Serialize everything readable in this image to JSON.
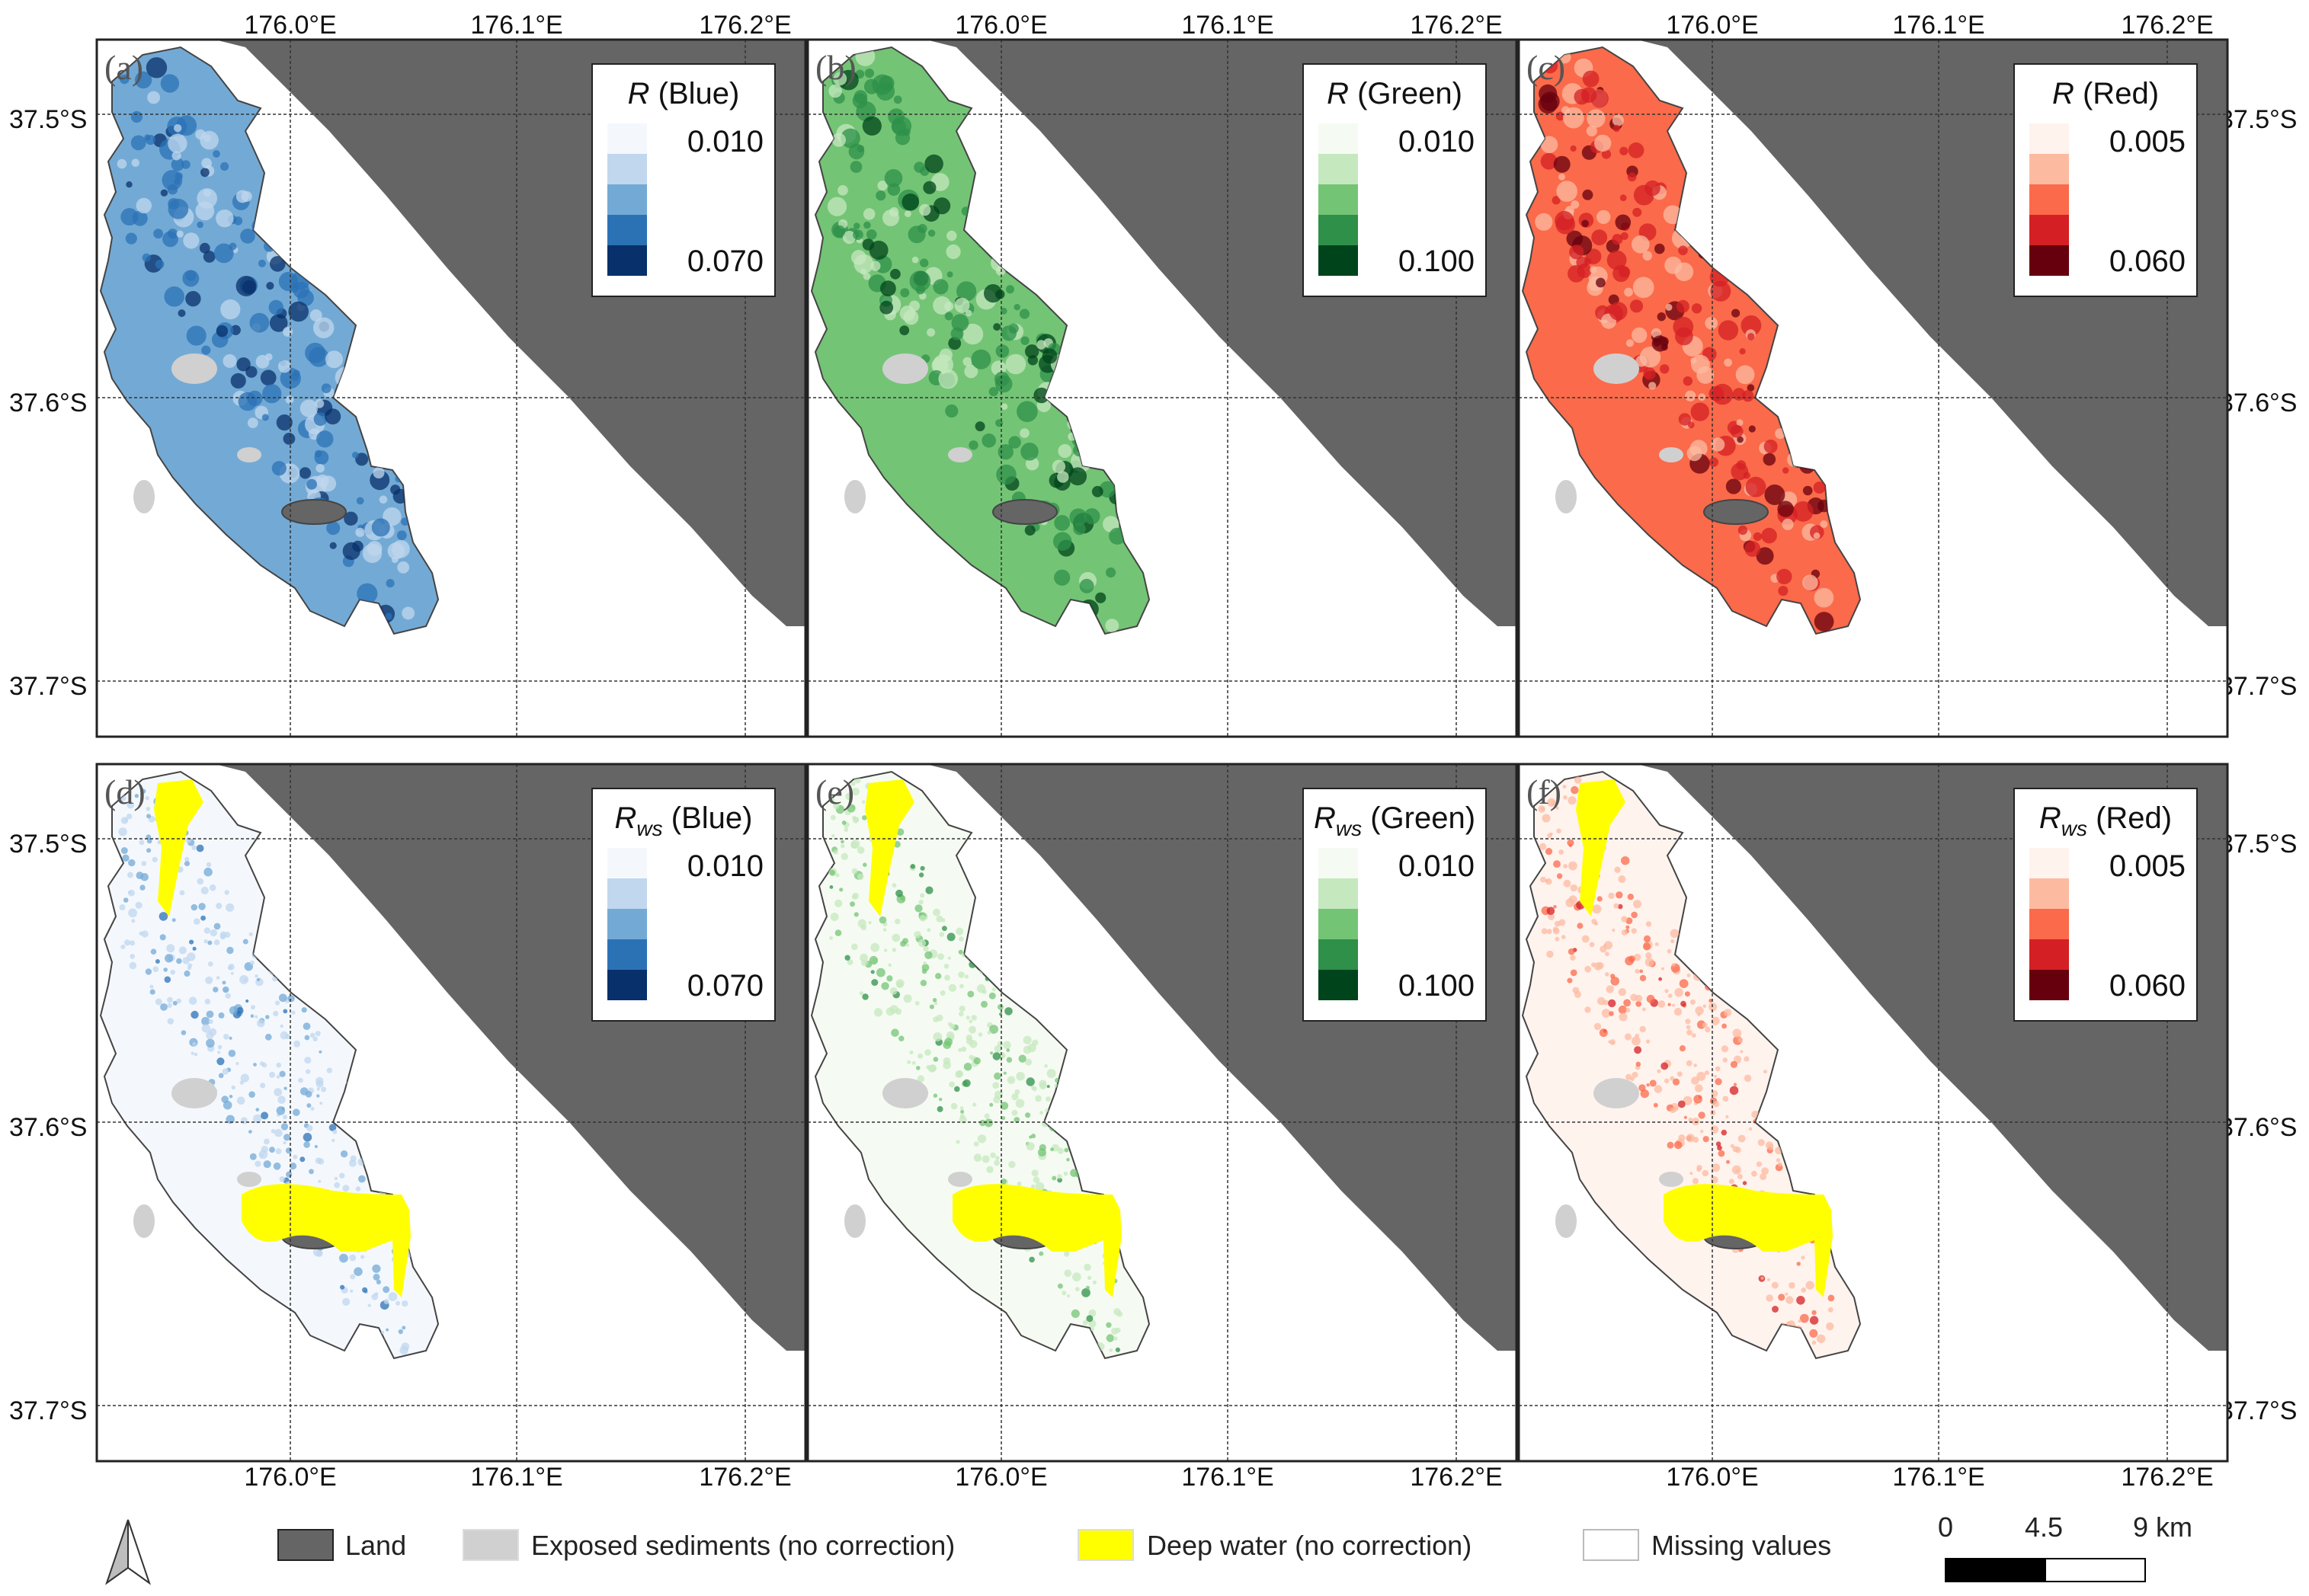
{
  "coordinates": {
    "lon_top": [
      "176.0°E",
      "176.1°E",
      "176.2°E"
    ],
    "lon_bottom": [
      "176.0°E",
      "176.1°E",
      "176.2°E"
    ],
    "lat_rows": [
      [
        "37.5°S",
        "37.6°S",
        "37.7°S"
      ],
      [
        "37.5°S",
        "37.6°S",
        "37.7°S"
      ]
    ]
  },
  "panels": [
    {
      "label": "(a)",
      "symbol": "R",
      "subscript": "",
      "band": "(Blue)",
      "max": "0.070",
      "min": "0.010",
      "style": "reflect",
      "ramp": [
        "#f4f8fd",
        "#c0d7ee",
        "#73aad5",
        "#2b72b5",
        "#08306b"
      ]
    },
    {
      "label": "(b)",
      "symbol": "R",
      "subscript": "",
      "band": "(Green)",
      "max": "0.100",
      "min": "0.010",
      "style": "reflect",
      "ramp": [
        "#f5fbf2",
        "#c5e8bf",
        "#74c476",
        "#2e9049",
        "#00441b"
      ]
    },
    {
      "label": "(c)",
      "symbol": "R",
      "subscript": "",
      "band": "(Red)",
      "max": "0.060",
      "min": "0.005",
      "style": "reflect",
      "ramp": [
        "#fff3ee",
        "#fcbba1",
        "#fb6a4a",
        "#d42024",
        "#67000d"
      ]
    },
    {
      "label": "(d)",
      "symbol": "R",
      "subscript": "ws",
      "band": "(Blue)",
      "max": "0.070",
      "min": "0.010",
      "style": "corrected",
      "ramp": [
        "#f4f8fd",
        "#c0d7ee",
        "#73aad5",
        "#2b72b5",
        "#08306b"
      ]
    },
    {
      "label": "(e)",
      "symbol": "R",
      "subscript": "ws",
      "band": "(Green)",
      "max": "0.100",
      "min": "0.010",
      "style": "corrected",
      "ramp": [
        "#f5fbf2",
        "#c5e8bf",
        "#74c476",
        "#2e9049",
        "#00441b"
      ]
    },
    {
      "label": "(f)",
      "symbol": "R",
      "subscript": "ws",
      "band": "(Red)",
      "max": "0.060",
      "min": "0.005",
      "style": "corrected",
      "ramp": [
        "#fff3ee",
        "#fcbba1",
        "#fb6a4a",
        "#d42024",
        "#67000d"
      ]
    }
  ],
  "legend": {
    "land": "Land",
    "sediments": "Exposed sediments (no correction)",
    "deep_water": "Deep water (no correction)",
    "missing": "Missing values"
  },
  "scale_bar": {
    "labels": [
      "0",
      "4.5",
      "9 km"
    ]
  },
  "colors": {
    "land": "#656565",
    "sediments": "#d0d0d0",
    "deep_water": "#ffff00",
    "missing": "#ffffff",
    "frame": "#222222",
    "grid": "#333333"
  }
}
